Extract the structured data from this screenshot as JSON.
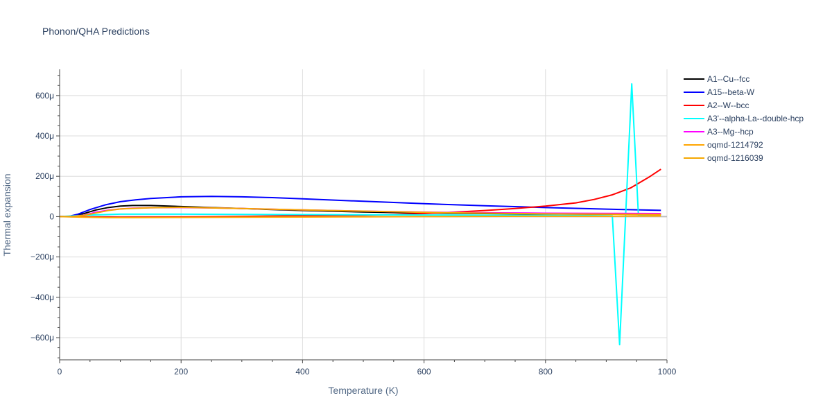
{
  "chart_data": {
    "type": "line",
    "title": "Phonon/QHA Predictions",
    "xlabel": "Temperature (K)",
    "ylabel": "Thermal expansion",
    "xlim": [
      0,
      1000
    ],
    "ylim": [
      -0.00071,
      0.00073
    ],
    "xticks": [
      0,
      200,
      400,
      600,
      800,
      1000
    ],
    "xtick_labels": [
      "0",
      "200",
      "400",
      "600",
      "800",
      "1000"
    ],
    "yticks": [
      -0.0006,
      -0.0004,
      -0.0002,
      0,
      0.0002,
      0.0004,
      0.0006
    ],
    "ytick_labels": [
      "−600μ",
      "−400μ",
      "−200μ",
      "0",
      "200μ",
      "400μ",
      "600μ"
    ],
    "grid": true,
    "legend_position": "right",
    "series": [
      {
        "name": "A1--Cu--fcc",
        "color": "#000000",
        "x": [
          0,
          20,
          40,
          60,
          80,
          100,
          120,
          150,
          200,
          250,
          300,
          400,
          500,
          600,
          700,
          800,
          900,
          990
        ],
        "y": [
          0,
          2e-06,
          1.5e-05,
          3.3e-05,
          4.5e-05,
          5.2e-05,
          5.5e-05,
          5.5e-05,
          5e-05,
          4.5e-05,
          4e-05,
          3e-05,
          2.3e-05,
          1.8e-05,
          1.5e-05,
          1.3e-05,
          1.2e-05,
          1.1e-05
        ]
      },
      {
        "name": "A15--beta-W",
        "color": "#0000ff",
        "x": [
          0,
          15,
          30,
          50,
          75,
          100,
          125,
          150,
          200,
          250,
          300,
          350,
          400,
          500,
          600,
          700,
          800,
          900,
          990
        ],
        "y": [
          0,
          1e-06,
          1.2e-05,
          3.5e-05,
          5.8e-05,
          7.4e-05,
          8.3e-05,
          9e-05,
          9.8e-05,
          0.0001,
          9.8e-05,
          9.4e-05,
          8.8e-05,
          7.6e-05,
          6.4e-05,
          5.4e-05,
          4.5e-05,
          3.7e-05,
          3.1e-05
        ]
      },
      {
        "name": "A2--W--bcc",
        "color": "#ff0000",
        "x": [
          0,
          100,
          200,
          300,
          400,
          500,
          550,
          600,
          650,
          700,
          750,
          800,
          850,
          880,
          910,
          940,
          970,
          990
        ],
        "y": [
          0,
          -3e-06,
          -2e-06,
          1e-06,
          4e-06,
          7e-06,
          1e-05,
          1.5e-05,
          2.2e-05,
          3e-05,
          4e-05,
          5.2e-05,
          6.8e-05,
          8.5e-05,
          0.000108,
          0.000142,
          0.000195,
          0.000235
        ]
      },
      {
        "name": "A3'--alpha-La--double-hcp",
        "color": "#00ffff",
        "x": [
          0,
          50,
          100,
          200,
          300,
          400,
          500,
          600,
          700,
          800,
          870,
          910,
          922,
          942,
          953,
          960,
          990
        ],
        "y": [
          0,
          8e-06,
          1.2e-05,
          1.2e-05,
          1.1e-05,
          1e-05,
          9e-06,
          8e-06,
          7e-06,
          6e-06,
          5e-06,
          4e-06,
          -0.000635,
          0.000658,
          5e-06,
          5e-06,
          4e-06
        ]
      },
      {
        "name": "A3--Mg--hcp",
        "color": "#ff00ff",
        "x": [
          0,
          20,
          40,
          60,
          80,
          100,
          120,
          150,
          200,
          250,
          300,
          400,
          500,
          600,
          700,
          800,
          900,
          990
        ],
        "y": [
          0,
          0,
          7e-06,
          2.2e-05,
          3.2e-05,
          3.8e-05,
          4.2e-05,
          4.4e-05,
          4.5e-05,
          4.3e-05,
          4e-05,
          3.3e-05,
          2.7e-05,
          2.2e-05,
          1.9e-05,
          1.7e-05,
          1.6e-05,
          1.5e-05
        ]
      },
      {
        "name": "oqmd-1214792",
        "color": "#ffa500",
        "x": [
          0,
          40,
          80,
          120,
          200,
          300,
          400,
          500,
          600,
          700,
          800,
          900,
          990
        ],
        "y": [
          0,
          -3e-06,
          -5e-06,
          -5e-06,
          -4e-06,
          -3e-06,
          -2e-06,
          -1e-06,
          0,
          1e-06,
          2e-06,
          2e-06,
          3e-06
        ]
      },
      {
        "name": "oqmd-1216039",
        "color": "#f5a700",
        "x": [
          0,
          20,
          40,
          60,
          80,
          100,
          150,
          200,
          300,
          400,
          500,
          600,
          700,
          800,
          900,
          990
        ],
        "y": [
          0,
          0,
          6e-06,
          1.8e-05,
          3e-05,
          3.8e-05,
          4.4e-05,
          4.6e-05,
          4e-05,
          3.3e-05,
          2.7e-05,
          2.1e-05,
          1.7e-05,
          1.4e-05,
          1.2e-05,
          1e-05
        ]
      }
    ]
  }
}
